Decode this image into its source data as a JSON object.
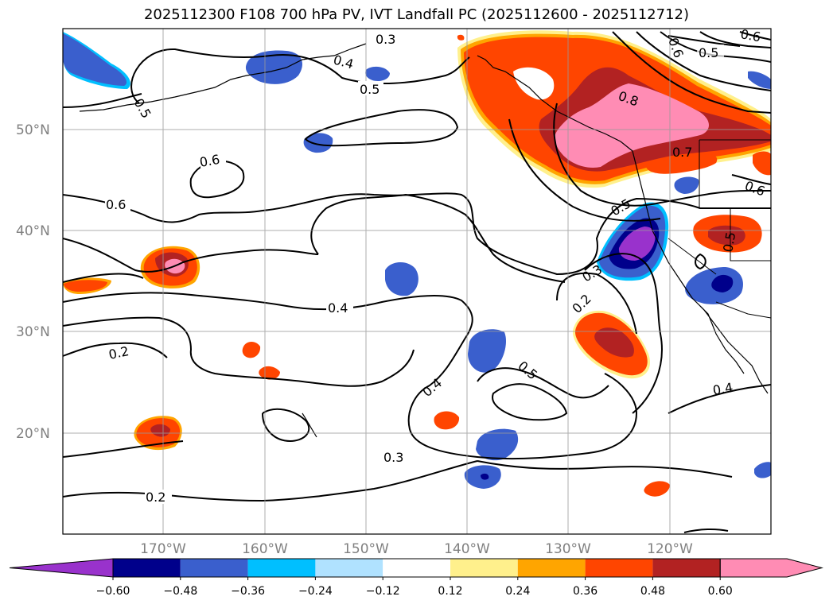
{
  "title": "2025112300 F108 700 hPa PV, IVT Landfall PC (2025112600 - 2025112712)",
  "lat_labels": [
    "50°N",
    "40°N",
    "30°N",
    "20°N"
  ],
  "lon_labels": [
    "170°W",
    "160°W",
    "150°W",
    "140°W",
    "130°W",
    "120°W"
  ],
  "contour_labels": [
    "0.3",
    "0.4",
    "0.5",
    "0.5",
    "0.6",
    "0.6",
    "0.6",
    "0.5",
    "0.6",
    "0.8",
    "0.7",
    "0.6",
    "0.5",
    "0.5",
    "0.3",
    "0.2",
    "0.4",
    "0.5",
    "0.4",
    "0.2",
    "0.3",
    "0.2",
    "0.4"
  ],
  "colorbar": {
    "ticks": [
      "−0.60",
      "−0.48",
      "−0.36",
      "−0.24",
      "−0.12",
      "0.12",
      "0.24",
      "0.36",
      "0.48",
      "0.60"
    ],
    "colors": [
      "#9932cc",
      "#00008b",
      "#3a5fcd",
      "#00bfff",
      "#b0e2ff",
      "#ffffff",
      "#fff08c",
      "#ffa500",
      "#ff4500",
      "#b22222",
      "#ff8cb4",
      "#ff8cb4"
    ],
    "under_color": "#9932cc",
    "over_color": "#ff8cb4"
  },
  "colors": {
    "purple": "#9932cc",
    "navy": "#00008b",
    "royalblue": "#3a5fcd",
    "deepskyblue": "#00bfff",
    "lightblue": "#b0e2ff",
    "yellow": "#fff08c",
    "orange": "#ffa500",
    "orangered": "#ff4500",
    "firebrick": "#b22222",
    "pink": "#ff8cb4"
  }
}
